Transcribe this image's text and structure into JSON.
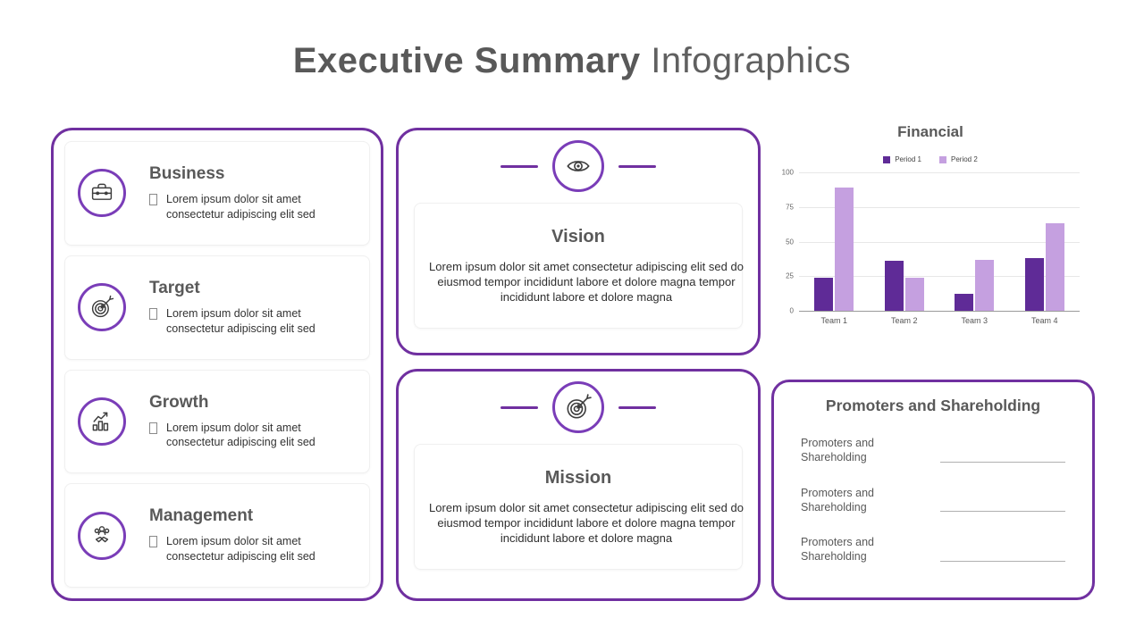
{
  "page": {
    "title_bold": "Executive Summary",
    "title_light": "Infographics"
  },
  "colors": {
    "accent_purple": "#7030a0",
    "circle_purple": "#7a3db8",
    "heading_gray": "#595959",
    "period1_color": "#5f2b97",
    "period2_color": "#c5a0e0"
  },
  "left_panel": {
    "items": [
      {
        "title": "Business",
        "icon": "briefcase-icon",
        "text": "Lorem ipsum dolor sit amet consectetur adipiscing elit sed"
      },
      {
        "title": "Target",
        "icon": "target-icon",
        "text": "Lorem ipsum dolor sit amet consectetur adipiscing elit sed"
      },
      {
        "title": "Growth",
        "icon": "growth-chart-icon",
        "text": "Lorem ipsum dolor sit amet consectetur adipiscing elit sed"
      },
      {
        "title": "Management",
        "icon": "team-handshake-icon",
        "text": "Lorem ipsum dolor sit amet consectetur adipiscing elit sed"
      }
    ]
  },
  "vision": {
    "title": "Vision",
    "icon": "eye-icon",
    "text": "Lorem ipsum dolor sit amet consectetur adipiscing elit sed do eiusmod tempor incididunt labore et dolore magna tempor incididunt labore et dolore magna"
  },
  "mission": {
    "title": "Mission",
    "icon": "target-icon",
    "text": "Lorem ipsum dolor sit amet consectetur adipiscing elit sed do eiusmod tempor incididunt labore et dolore magna tempor incididunt labore et dolore magna"
  },
  "chart_data": {
    "type": "bar",
    "title": "Financial",
    "categories": [
      "Team 1",
      "Team 2",
      "Team 3",
      "Team 4"
    ],
    "series": [
      {
        "name": "Period 1",
        "color": "#5f2b97",
        "values": [
          24,
          36,
          12,
          38
        ]
      },
      {
        "name": "Period 2",
        "color": "#c5a0e0",
        "values": [
          89,
          24,
          37,
          63
        ]
      }
    ],
    "ylabel": "",
    "xlabel": "",
    "ylim": [
      0,
      100
    ],
    "yticks": [
      0,
      25,
      50,
      75,
      100
    ],
    "grid": true,
    "legend_position": "top"
  },
  "promoters": {
    "title": "Promoters and Shareholding",
    "rows": [
      {
        "label": "Promoters and Shareholding"
      },
      {
        "label": "Promoters and Shareholding"
      },
      {
        "label": "Promoters and Shareholding"
      }
    ]
  }
}
